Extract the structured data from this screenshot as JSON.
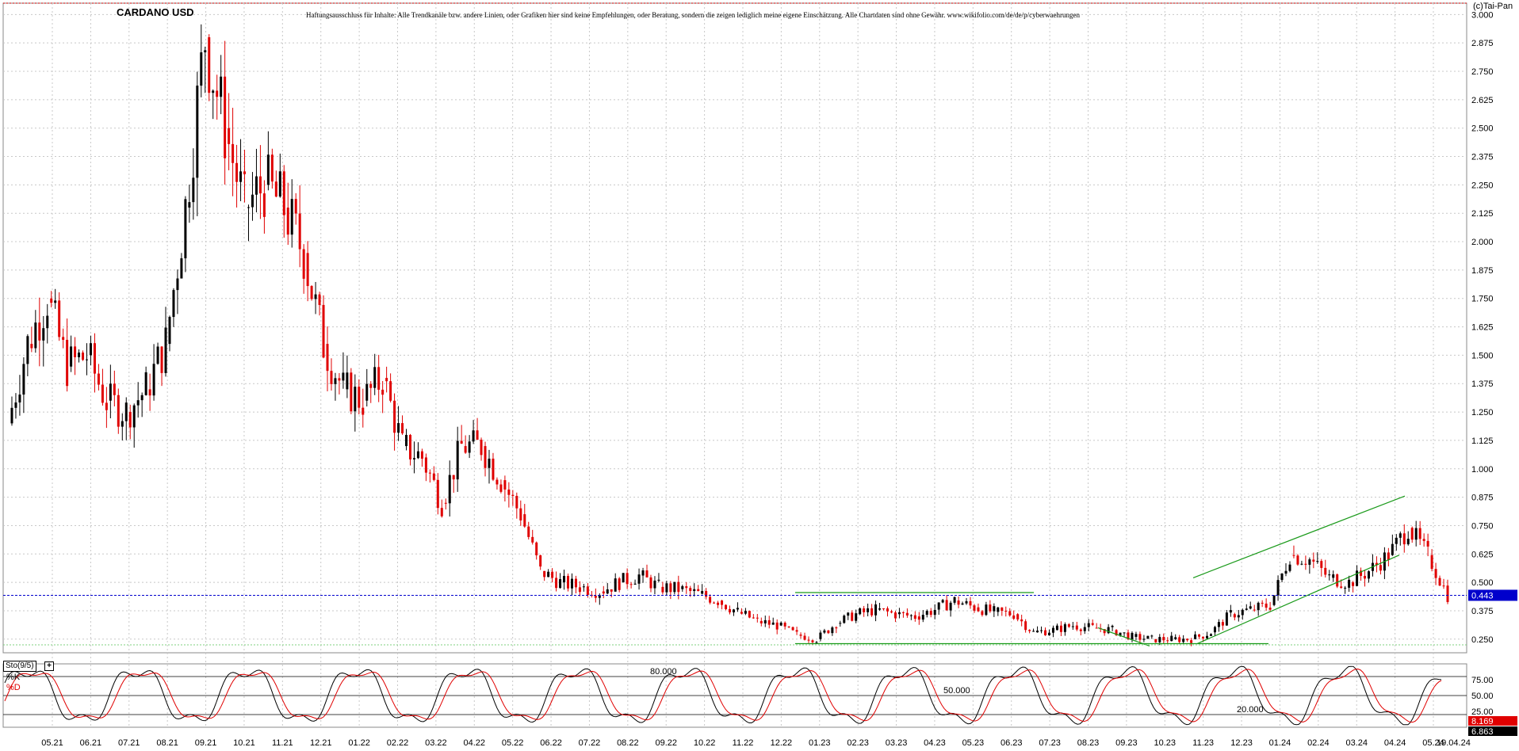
{
  "title": "CARDANO USD",
  "disclaimer": "Haftungsausschluss für Inhalte: Alle Trendkanäle bzw. andere Linien, oder Grafiken hier sind keine Empfehlungen, oder Beratung, sondern die zeigen lediglich meine eigene Einschätzung. Alle Chartdaten sind ohne Gewähr. www.wikifolio.com/de/de/p/cyberwaehrungen",
  "copyright": "(c)Tai-Pan",
  "colors": {
    "up": "#000000",
    "down": "#e00000",
    "grid": "#c8c8c8",
    "trend": "#1a9a1a",
    "level_line": "#0000cc",
    "price_badge": "#0000cc",
    "k_line": "#000000",
    "d_line": "#e00000"
  },
  "chart_data": [
    {
      "type": "candlestick",
      "title": "CARDANO USD",
      "y_axis": {
        "side": "right",
        "ylim": [
          0.19,
          3.05
        ],
        "ticks": [
          "0.250",
          "0.375",
          "0.500",
          "0.625",
          "0.750",
          "0.875",
          "1.000",
          "1.125",
          "1.250",
          "1.375",
          "1.500",
          "1.625",
          "1.750",
          "1.875",
          "2.000",
          "2.125",
          "2.250",
          "2.375",
          "2.500",
          "2.625",
          "2.750",
          "2.875",
          "3.000"
        ]
      },
      "x_axis": {
        "labels": [
          "05.21",
          "06.21",
          "07.21",
          "08.21",
          "09.21",
          "10.21",
          "11.21",
          "12.21",
          "01.22",
          "02.22",
          "03.22",
          "04.22",
          "05.22",
          "06.22",
          "07.22",
          "08.22",
          "09.22",
          "10.22",
          "11.22",
          "12.22",
          "01.23",
          "02.23",
          "03.23",
          "04.23",
          "05.23",
          "06.23",
          "07.23",
          "08.23",
          "09.23",
          "10.23",
          "11.23",
          "12.23",
          "01.24",
          "02.24",
          "03.24",
          "04.24",
          "05.24"
        ],
        "last_date": "19.04.24"
      },
      "grid": true,
      "last_price": "0.443",
      "series": [
        {
          "x": "2021-04",
          "y": 1.2
        },
        {
          "x": "2021-05",
          "y": 1.55
        },
        {
          "x": "2021-05b",
          "y": 1.75
        },
        {
          "x": "2021-06",
          "y": 1.45
        },
        {
          "x": "2021-06b",
          "y": 1.5
        },
        {
          "x": "2021-07",
          "y": 1.3
        },
        {
          "x": "2021-07b",
          "y": 1.25
        },
        {
          "x": "2021-08",
          "y": 1.35
        },
        {
          "x": "2021-08b",
          "y": 1.55
        },
        {
          "x": "2021-08c",
          "y": 2.15
        },
        {
          "x": "2021-09",
          "y": 2.9
        },
        {
          "x": "2021-09b",
          "y": 2.5
        },
        {
          "x": "2021-10",
          "y": 2.15
        },
        {
          "x": "2021-10b",
          "y": 2.25
        },
        {
          "x": "2021-11",
          "y": 2.15
        },
        {
          "x": "2021-11b",
          "y": 1.95
        },
        {
          "x": "2021-12",
          "y": 1.55
        },
        {
          "x": "2021-12b",
          "y": 1.35
        },
        {
          "x": "2022-01",
          "y": 1.3
        },
        {
          "x": "2022-01b",
          "y": 1.4
        },
        {
          "x": "2022-02",
          "y": 1.1
        },
        {
          "x": "2022-02b",
          "y": 1.05
        },
        {
          "x": "2022-03",
          "y": 0.85
        },
        {
          "x": "2022-03b",
          "y": 1.1
        },
        {
          "x": "2022-04",
          "y": 1.1
        },
        {
          "x": "2022-04b",
          "y": 0.95
        },
        {
          "x": "2022-05",
          "y": 0.8
        },
        {
          "x": "2022-05b",
          "y": 0.55
        },
        {
          "x": "2022-06",
          "y": 0.5
        },
        {
          "x": "2022-06b",
          "y": 0.48
        },
        {
          "x": "2022-07",
          "y": 0.46
        },
        {
          "x": "2022-07b",
          "y": 0.5
        },
        {
          "x": "2022-08",
          "y": 0.53
        },
        {
          "x": "2022-08b",
          "y": 0.48
        },
        {
          "x": "2022-09",
          "y": 0.47
        },
        {
          "x": "2022-09b",
          "y": 0.45
        },
        {
          "x": "2022-10",
          "y": 0.42
        },
        {
          "x": "2022-10b",
          "y": 0.37
        },
        {
          "x": "2022-11",
          "y": 0.33
        },
        {
          "x": "2022-11b",
          "y": 0.31
        },
        {
          "x": "2022-12",
          "y": 0.27
        },
        {
          "x": "2022-12b",
          "y": 0.25
        },
        {
          "x": "2023-01",
          "y": 0.32
        },
        {
          "x": "2023-01b",
          "y": 0.36
        },
        {
          "x": "2023-02",
          "y": 0.38
        },
        {
          "x": "2023-02b",
          "y": 0.36
        },
        {
          "x": "2023-03",
          "y": 0.35
        },
        {
          "x": "2023-03b",
          "y": 0.38
        },
        {
          "x": "2023-04",
          "y": 0.42
        },
        {
          "x": "2023-04b",
          "y": 0.39
        },
        {
          "x": "2023-05",
          "y": 0.37
        },
        {
          "x": "2023-05b",
          "y": 0.36
        },
        {
          "x": "2023-06",
          "y": 0.28
        },
        {
          "x": "2023-06b",
          "y": 0.29
        },
        {
          "x": "2023-07",
          "y": 0.31
        },
        {
          "x": "2023-07b",
          "y": 0.3
        },
        {
          "x": "2023-08",
          "y": 0.29
        },
        {
          "x": "2023-08b",
          "y": 0.26
        },
        {
          "x": "2023-09",
          "y": 0.25
        },
        {
          "x": "2023-09b",
          "y": 0.25
        },
        {
          "x": "2023-10",
          "y": 0.25
        },
        {
          "x": "2023-10b",
          "y": 0.28
        },
        {
          "x": "2023-11",
          "y": 0.36
        },
        {
          "x": "2023-11b",
          "y": 0.38
        },
        {
          "x": "2023-12",
          "y": 0.4
        },
        {
          "x": "2023-12b",
          "y": 0.62
        },
        {
          "x": "2024-01",
          "y": 0.6
        },
        {
          "x": "2024-01b",
          "y": 0.52
        },
        {
          "x": "2024-02",
          "y": 0.5
        },
        {
          "x": "2024-02b",
          "y": 0.55
        },
        {
          "x": "2024-03",
          "y": 0.62
        },
        {
          "x": "2024-03b",
          "y": 0.74
        },
        {
          "x": "2024-04",
          "y": 0.62
        },
        {
          "x": "2024-04b",
          "y": 0.443
        }
      ]
    },
    {
      "type": "line",
      "title": "Sto(9/5)",
      "series": [
        {
          "name": "%K"
        },
        {
          "name": "%D"
        }
      ],
      "levels": [
        {
          "label": "80.000",
          "value": 80
        },
        {
          "label": "50.000",
          "value": 50
        },
        {
          "label": "20.000",
          "value": 20
        }
      ],
      "y_axis": {
        "ticks": [
          "75.00",
          "50.00",
          "25.00"
        ],
        "ylim": [
          0,
          100
        ]
      },
      "last_k": "8.169",
      "last_d": "6.863"
    }
  ]
}
